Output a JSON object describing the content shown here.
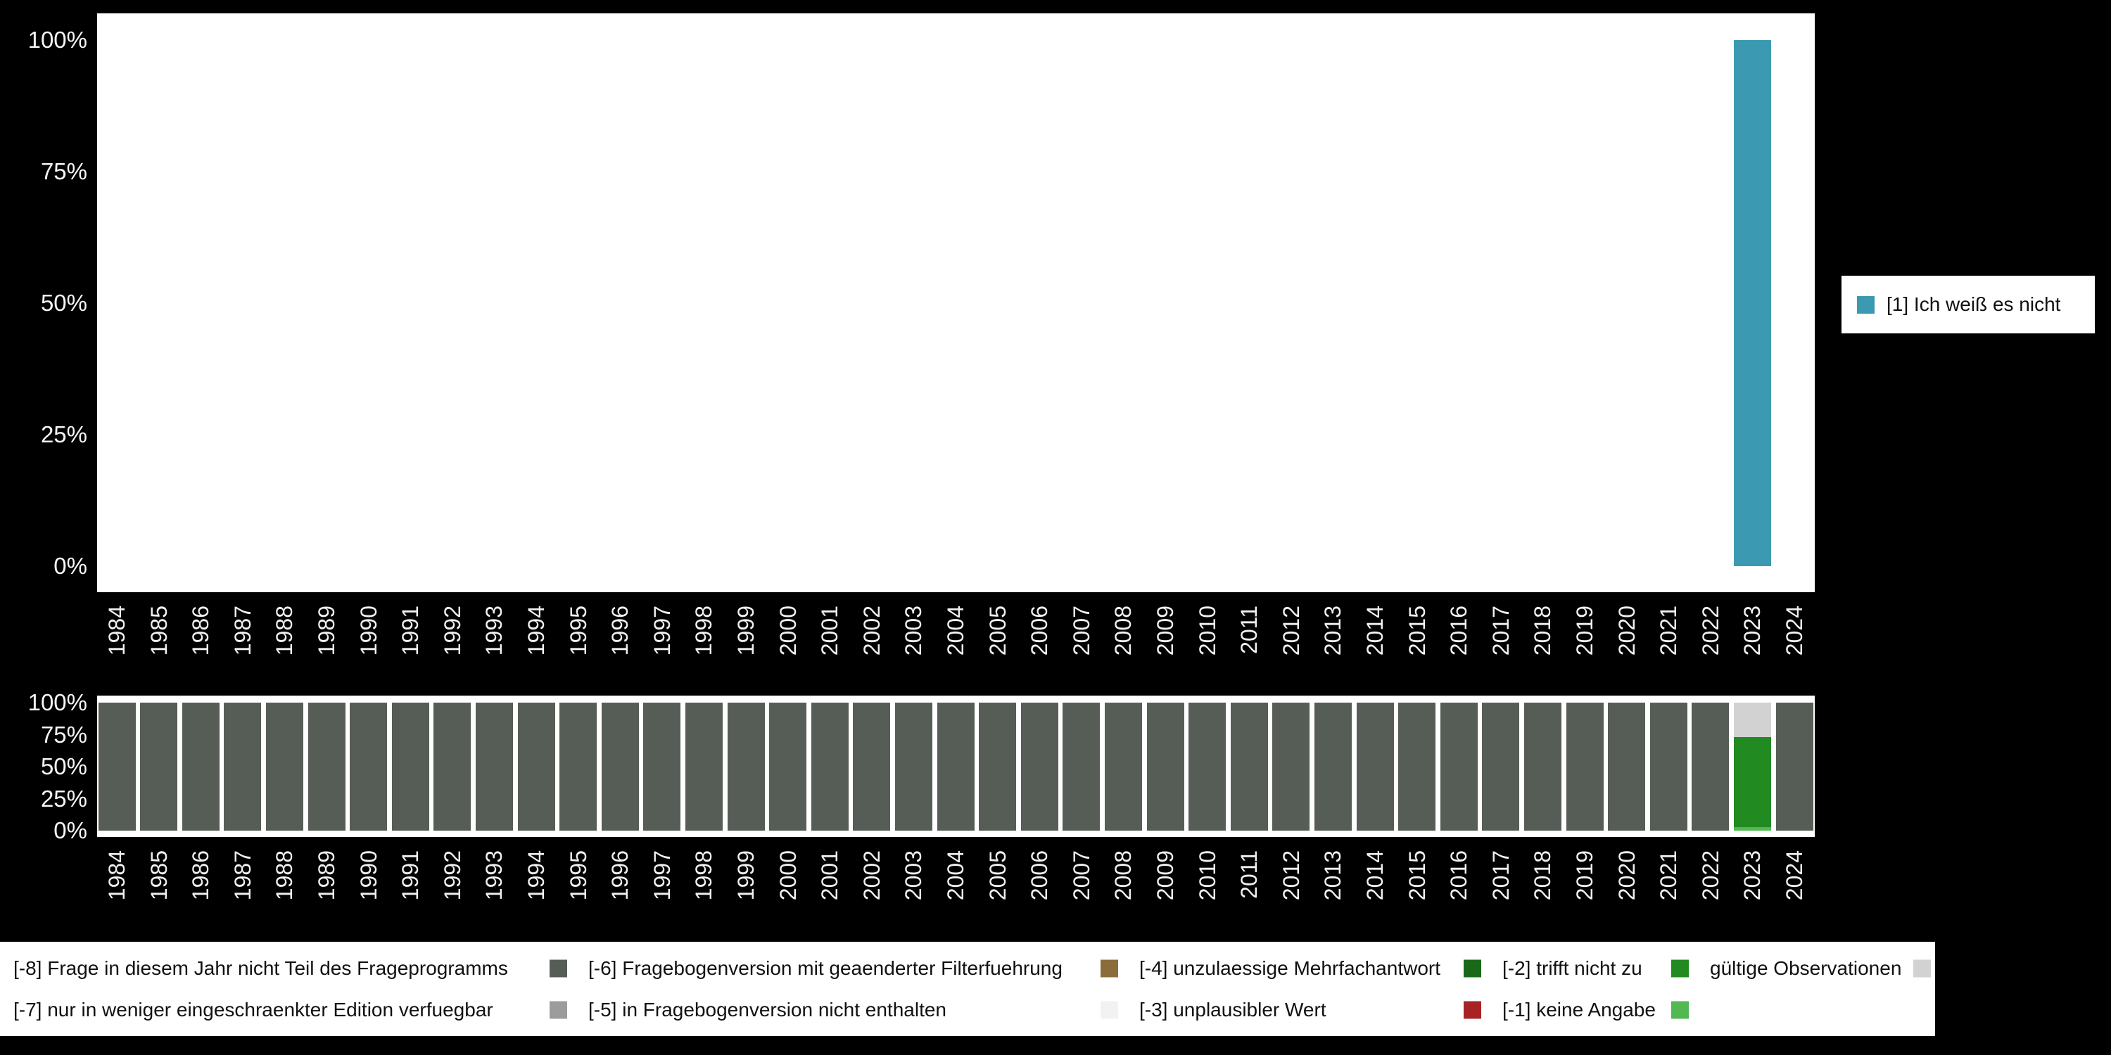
{
  "colors": {
    "background": "#000000",
    "panel": "#ffffff",
    "axis_text": "#f0f0f0",
    "legend_text": "#111111",
    "answer_1": "#3b9ab2",
    "missing_8": "#565d56",
    "missing_7": "#9c9c9c",
    "missing_6": "#8a6d3b",
    "missing_5": "#f2f2f2",
    "missing_4": "#1a691a",
    "missing_3": "#a82424",
    "missing_2": "#218a21",
    "missing_1": "#52b852",
    "valid": "#d2d2d2"
  },
  "answer_legend": {
    "items": [
      {
        "label": "[1] Ich weiß es nicht",
        "color_key": "answer_1"
      }
    ]
  },
  "missing_legend": {
    "rows": [
      [
        {
          "label": "[-8] Frage in diesem Jahr nicht Teil des Frageprogramms",
          "color_key": "missing_8"
        },
        {
          "label": "[-6] Fragebogenversion mit geaenderter Filterfuehrung",
          "color_key": "missing_6"
        },
        {
          "label": "[-4] unzulaessige Mehrfachantwort",
          "color_key": "missing_4"
        },
        {
          "label": "[-2] trifft nicht zu",
          "color_key": "missing_2"
        },
        {
          "label": "gültige Observationen",
          "color_key": "valid"
        }
      ],
      [
        {
          "label": "[-7] nur in weniger eingeschraenkter Edition verfuegbar",
          "color_key": "missing_7"
        },
        {
          "label": "[-5] in Fragebogenversion nicht enthalten",
          "color_key": "missing_5"
        },
        {
          "label": "[-3] unplausibler Wert",
          "color_key": "missing_3"
        },
        {
          "label": "[-1] keine Angabe",
          "color_key": "missing_1"
        }
      ]
    ]
  },
  "chart_data": [
    {
      "id": "top",
      "type": "bar",
      "title": "",
      "xlabel": "",
      "ylabel": "",
      "ylim": [
        0,
        100
      ],
      "ytick_values": [
        100,
        75,
        50,
        25,
        0
      ],
      "ytick_labels": [
        "100%",
        "75%",
        "50%",
        "25%",
        "0%"
      ],
      "x": [
        "1984",
        "1985",
        "1986",
        "1987",
        "1988",
        "1989",
        "1990",
        "1991",
        "1992",
        "1993",
        "1994",
        "1995",
        "1996",
        "1997",
        "1998",
        "1999",
        "2000",
        "2001",
        "2002",
        "2003",
        "2004",
        "2005",
        "2006",
        "2007",
        "2008",
        "2009",
        "2010",
        "2011",
        "2012",
        "2013",
        "2014",
        "2015",
        "2016",
        "2017",
        "2018",
        "2019",
        "2020",
        "2021",
        "2022",
        "2023",
        "2024"
      ],
      "series": [
        {
          "name": "[1] Ich weiß es nicht",
          "color_key": "answer_1",
          "values": {
            "2023": 100
          }
        }
      ],
      "legend_position": "right"
    },
    {
      "id": "bottom",
      "type": "stacked-bar",
      "title": "",
      "xlabel": "",
      "ylabel": "",
      "ylim": [
        0,
        100
      ],
      "ytick_values": [
        100,
        75,
        50,
        25,
        0
      ],
      "ytick_labels": [
        "100%",
        "75%",
        "50%",
        "25%",
        "0%"
      ],
      "x": [
        "1984",
        "1985",
        "1986",
        "1987",
        "1988",
        "1989",
        "1990",
        "1991",
        "1992",
        "1993",
        "1994",
        "1995",
        "1996",
        "1997",
        "1998",
        "1999",
        "2000",
        "2001",
        "2002",
        "2003",
        "2004",
        "2005",
        "2006",
        "2007",
        "2008",
        "2009",
        "2010",
        "2011",
        "2012",
        "2013",
        "2014",
        "2015",
        "2016",
        "2017",
        "2018",
        "2019",
        "2020",
        "2021",
        "2022",
        "2023",
        "2024"
      ],
      "default_stack": [
        {
          "color_key": "missing_8",
          "label": "[-8] Frage in diesem Jahr nicht Teil des Frageprogramms",
          "value": 100
        }
      ],
      "overrides": {
        "2023": [
          {
            "color_key": "missing_1",
            "label": "[-1] keine Angabe",
            "value": 3
          },
          {
            "color_key": "missing_2",
            "label": "[-2] trifft nicht zu",
            "value": 70
          },
          {
            "color_key": "valid",
            "label": "gültige Observationen",
            "value": 27
          }
        ]
      },
      "legend_position": "bottom"
    }
  ]
}
